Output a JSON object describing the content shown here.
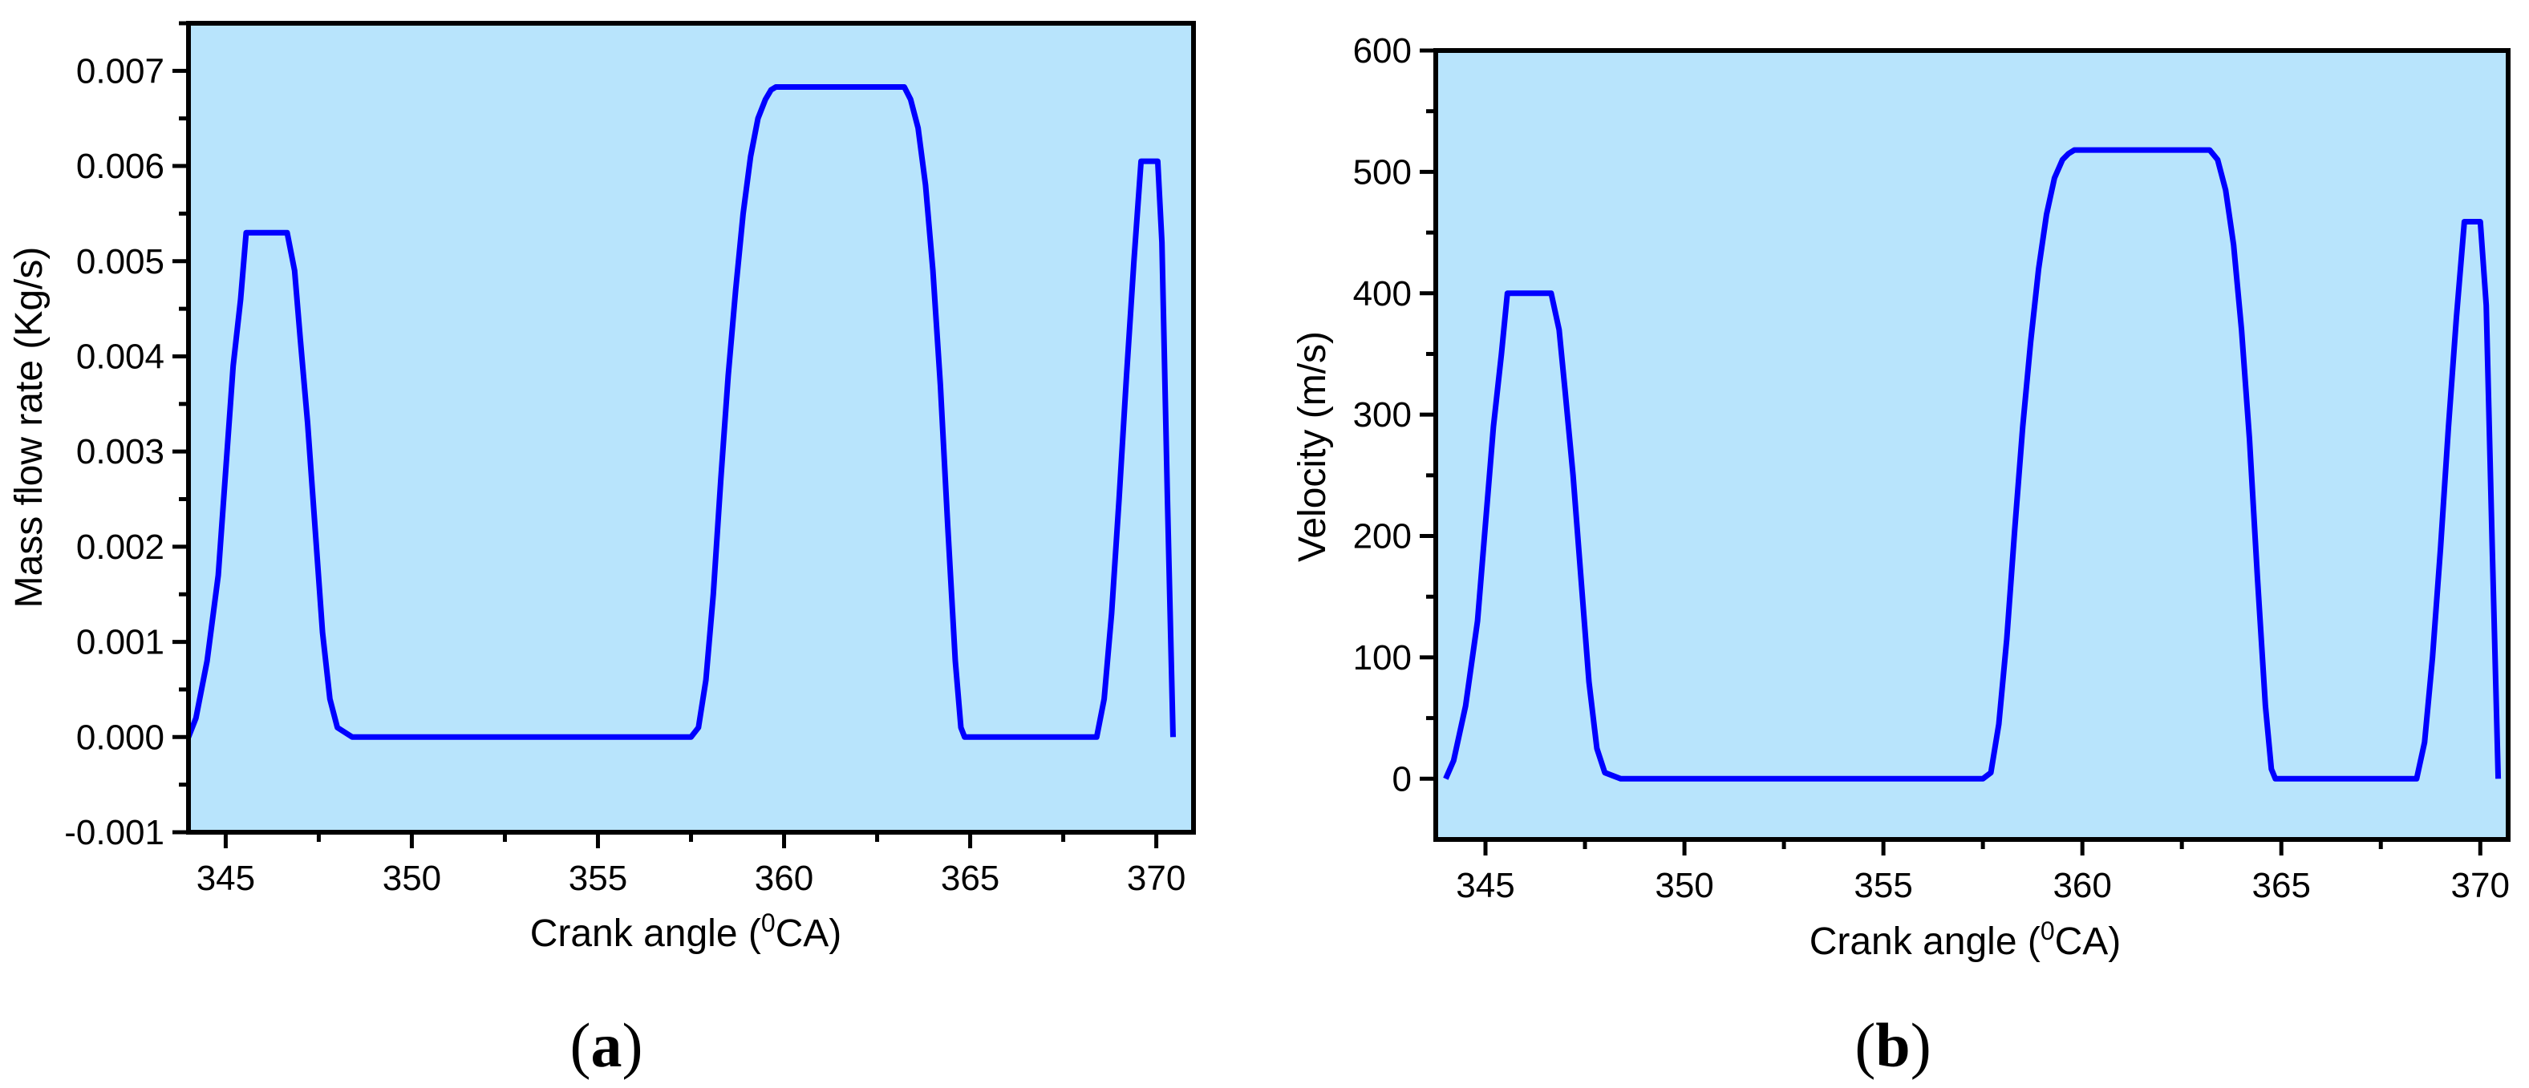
{
  "colors": {
    "plot_background": "#b8e4fc",
    "line": "#0000ff",
    "axis": "#000000"
  },
  "chart_data": [
    {
      "type": "line",
      "panel": "a",
      "panel_label": "a",
      "title": "",
      "xlabel": "Crank angle (⁰CA)",
      "xlabel_main": "Crank angle (",
      "xlabel_sup": "0",
      "xlabel_end": "CA)",
      "ylabel": "Mass flow rate (Kg/s)",
      "xlim": [
        344.0,
        371.0
      ],
      "ylim": [
        -0.001,
        0.0075
      ],
      "xticks": [
        345,
        350,
        355,
        360,
        365,
        370
      ],
      "xtick_labels": [
        "345",
        "350",
        "355",
        "360",
        "365",
        "370"
      ],
      "yticks": [
        -0.001,
        0.0,
        0.001,
        0.002,
        0.003,
        0.004,
        0.005,
        0.006,
        0.007
      ],
      "ytick_labels": [
        "-0.001",
        "0.000",
        "0.001",
        "0.002",
        "0.003",
        "0.004",
        "0.005",
        "0.006",
        "0.007"
      ],
      "grid": false,
      "legend": null,
      "series": [
        {
          "name": "Mass flow rate",
          "x": [
            344.0,
            344.2,
            344.5,
            344.8,
            345.0,
            345.2,
            345.4,
            345.55,
            346.65,
            346.85,
            347.0,
            347.2,
            347.4,
            347.6,
            347.8,
            348.0,
            348.4,
            357.5,
            357.7,
            357.9,
            358.1,
            358.3,
            358.5,
            358.7,
            358.9,
            359.1,
            359.3,
            359.5,
            359.65,
            359.78,
            363.23,
            363.4,
            363.6,
            363.8,
            364.0,
            364.2,
            364.4,
            364.6,
            364.75,
            364.85,
            365.1,
            368.4,
            368.6,
            368.8,
            369.0,
            369.2,
            369.4,
            369.59,
            370.04,
            370.15,
            370.3,
            370.45
          ],
          "values": [
            0.0,
            0.0002,
            0.0008,
            0.0017,
            0.0028,
            0.0039,
            0.0046,
            0.0053,
            0.0053,
            0.0049,
            0.0042,
            0.0033,
            0.0022,
            0.0011,
            0.0004,
            0.0001,
            0.0,
            0.0,
            0.0001,
            0.0006,
            0.0015,
            0.0027,
            0.0038,
            0.0047,
            0.0055,
            0.0061,
            0.0065,
            0.0067,
            0.0068,
            0.00683,
            0.00683,
            0.0067,
            0.0064,
            0.0058,
            0.0049,
            0.0037,
            0.0022,
            0.0008,
            0.0001,
            0.0,
            0.0,
            0.0,
            0.0004,
            0.0013,
            0.0025,
            0.0038,
            0.005,
            0.00605,
            0.00605,
            0.0052,
            0.0025,
            0.0
          ]
        }
      ]
    },
    {
      "type": "line",
      "panel": "b",
      "panel_label": "b",
      "title": "",
      "xlabel": "Crank angle (⁰CA)",
      "xlabel_main": "Crank angle (",
      "xlabel_sup": "0",
      "xlabel_end": "CA)",
      "ylabel": "Velocity (m/s)",
      "xlim": [
        343.75,
        370.7
      ],
      "ylim": [
        -50,
        600
      ],
      "xticks": [
        345,
        350,
        355,
        360,
        365,
        370
      ],
      "xtick_labels": [
        "345",
        "350",
        "355",
        "360",
        "365",
        "370"
      ],
      "yticks": [
        0,
        100,
        200,
        300,
        400,
        500,
        600
      ],
      "ytick_labels": [
        "0",
        "100",
        "200",
        "300",
        "400",
        "500",
        "600"
      ],
      "grid": false,
      "legend": null,
      "series": [
        {
          "name": "Velocity",
          "x": [
            344.0,
            344.2,
            344.5,
            344.8,
            345.0,
            345.2,
            345.4,
            345.55,
            346.65,
            346.85,
            347.0,
            347.2,
            347.4,
            347.6,
            347.8,
            348.0,
            348.4,
            357.5,
            357.7,
            357.9,
            358.1,
            358.3,
            358.5,
            358.7,
            358.9,
            359.1,
            359.3,
            359.5,
            359.65,
            359.8,
            363.2,
            363.4,
            363.6,
            363.8,
            364.0,
            364.2,
            364.4,
            364.6,
            364.75,
            364.85,
            365.1,
            368.4,
            368.6,
            368.8,
            369.0,
            369.2,
            369.4,
            369.6,
            370.0,
            370.15,
            370.3,
            370.45
          ],
          "values": [
            0,
            15,
            60,
            130,
            210,
            290,
            350,
            400,
            400,
            370,
            320,
            250,
            165,
            80,
            25,
            5,
            0,
            0,
            5,
            45,
            115,
            205,
            290,
            360,
            420,
            465,
            495,
            510,
            515,
            518,
            518,
            510,
            485,
            440,
            370,
            280,
            165,
            60,
            8,
            0,
            0,
            0,
            30,
            100,
            190,
            290,
            380,
            459,
            459,
            390,
            190,
            0
          ]
        }
      ]
    }
  ]
}
